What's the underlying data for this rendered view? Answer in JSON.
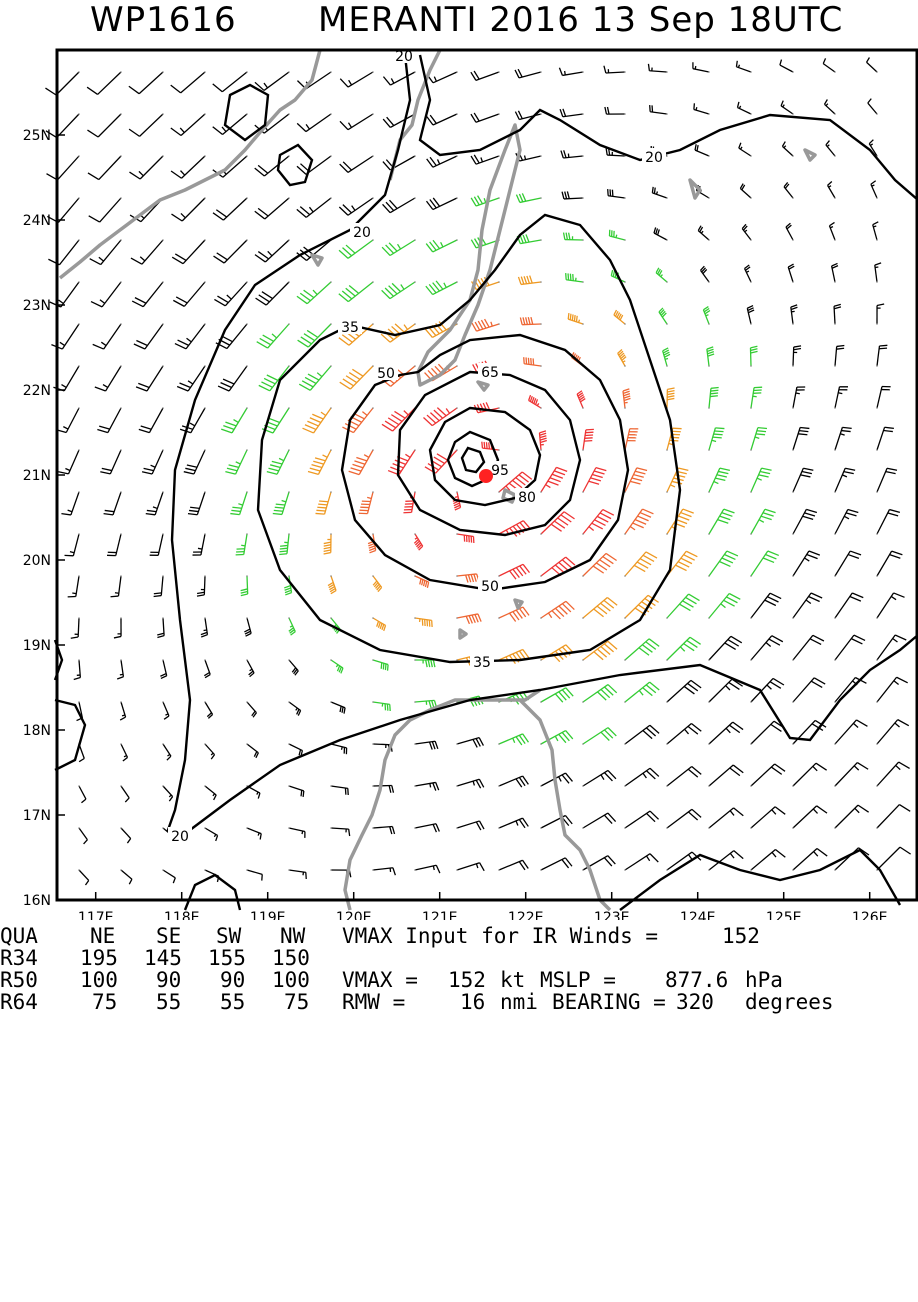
{
  "title": {
    "storm_id": "WP1616",
    "storm_info": "MERANTI 2016 13 Sep 18UTC"
  },
  "map": {
    "lon_ticks": [
      "117E",
      "118E",
      "119E",
      "120E",
      "121E",
      "122E",
      "123E",
      "124E",
      "125E",
      "126E"
    ],
    "lat_ticks": [
      "16N",
      "17N",
      "18N",
      "19N",
      "20N",
      "21N",
      "22N",
      "23N",
      "24N",
      "25N"
    ],
    "lon_range": [
      116.55,
      126.55
    ],
    "lat_range": [
      16.0,
      26.0
    ],
    "contour_levels": [
      "20",
      "20",
      "20",
      "20",
      "35",
      "35",
      "50",
      "50",
      "65",
      "80",
      "95"
    ],
    "wind_colors": {
      "below_34kt": "#000000",
      "34_to_49kt": "#33cc33",
      "50_to_63kt": "#ee9922",
      "64_to_82kt": "#ee6633",
      "83_plus_kt": "#ee3333"
    },
    "land_color": "#999999",
    "center_marker_color": "#ff2222",
    "center": {
      "lon": 121.55,
      "lat": 21.0
    }
  },
  "stats": {
    "header": {
      "label": "QUA",
      "ne": "NE",
      "se": "SE",
      "sw": "SW",
      "nw": "NW",
      "note": "VMAX Input for IR Winds =",
      "note_value": "152"
    },
    "r34": {
      "label": "R34",
      "ne": "195",
      "se": "145",
      "sw": "155",
      "nw": "150"
    },
    "r50": {
      "label": "R50",
      "ne": "100",
      "se": "90",
      "sw": "90",
      "nw": "100",
      "vmax_label": "VMAX =",
      "vmax_value": "152",
      "vmax_unit": "kt",
      "mslp_label": "MSLP =",
      "mslp_value": "877.6",
      "mslp_unit": "hPa"
    },
    "r64": {
      "label": "R64",
      "ne": "75",
      "se": "55",
      "sw": "55",
      "nw": "75",
      "rmw_label": "RMW =",
      "rmw_value": "16",
      "rmw_unit": "nmi",
      "bearing_label": "BEARING =",
      "bearing_value": "320",
      "bearing_unit": "degrees"
    }
  }
}
